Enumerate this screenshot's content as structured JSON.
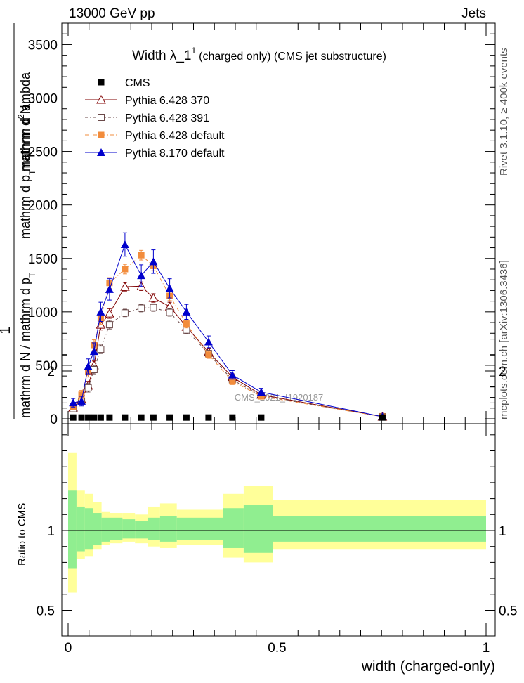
{
  "header": {
    "energy": "13000 GeV pp",
    "process": "Jets",
    "side_version": "Rivet 3.1.10, ≥ 400k events",
    "side_source": "mcplots.cern.ch [arXiv:1306.3436]"
  },
  "chart_data": {
    "type": "line",
    "title_main": "Width λ_1",
    "title_sup": "1",
    "title_tail": "(charged only) (CMS jet substructure)",
    "ylabel": "1 / mathrm d N / mathrm d p_T mathrm d^2N / mathrm d p_T mathrm d lambda",
    "ylabel_parts": {
      "one": "1",
      "denominator": "mathrm d N / mathrm d p",
      "sub": "T",
      "numerator_a": "mathrm d",
      "numerator_sup": "2",
      "numerator_b": "N",
      "numerator_c": "mathrm d p",
      "numerator_sub": "T",
      "numerator_d": "mathrm d lambda"
    },
    "ratio_ylabel": "Ratio to CMS",
    "xlabel": "width (charged-only)",
    "watermark": "CMS_2021_I1920187",
    "xlim": [
      0,
      1
    ],
    "ylim": [
      0,
      3700
    ],
    "ratio_ylim": [
      0.35,
      2.3
    ],
    "yticks": [
      0,
      500,
      1000,
      1500,
      2000,
      2500,
      3000,
      3500
    ],
    "ytick_labels": [
      "0",
      "500",
      "1000",
      "1500",
      "2000",
      "2500",
      "3000",
      "3500"
    ],
    "xticks": [
      0,
      0.5,
      1
    ],
    "xtick_labels": [
      "0",
      "0.5",
      "1"
    ],
    "ratio_yticks": [
      0.5,
      1,
      2
    ],
    "ratio_ytick_labels": [
      "0.5",
      "1",
      "2"
    ],
    "legend_position": "top-left",
    "bin_edges": [
      0,
      0.02,
      0.04,
      0.06,
      0.08,
      0.1,
      0.13,
      0.16,
      0.19,
      0.22,
      0.26,
      0.3,
      0.37,
      0.42,
      0.49,
      1.0
    ],
    "x": [
      0.012,
      0.032,
      0.048,
      0.062,
      0.078,
      0.099,
      0.136,
      0.175,
      0.204,
      0.243,
      0.283,
      0.336,
      0.393,
      0.462,
      0.752
    ],
    "cms_values": [
      12,
      12,
      12,
      12,
      12,
      12,
      12,
      12,
      12,
      12,
      12,
      12,
      12,
      12,
      12
    ],
    "series": [
      {
        "name": "CMS",
        "marker": "filled-square",
        "color": "#000000",
        "dash": "none",
        "values": [
          12,
          12,
          12,
          12,
          12,
          12,
          12,
          12,
          12,
          12,
          12,
          12,
          12,
          12,
          12
        ],
        "err": [
          0,
          0,
          0,
          0,
          0,
          0,
          0,
          0,
          0,
          0,
          0,
          0,
          0,
          0,
          0
        ],
        "line": false
      },
      {
        "name": "Pythia 6.428 370",
        "marker": "open-triangle",
        "color": "#800000",
        "dash": "none",
        "values": [
          105,
          180,
          310,
          500,
          880,
          985,
          1235,
          1240,
          1130,
          1050,
          860,
          625,
          390,
          225,
          20
        ],
        "err": [
          25,
          35,
          40,
          40,
          50,
          45,
          40,
          40,
          40,
          40,
          40,
          35,
          30,
          25,
          10
        ],
        "line": true
      },
      {
        "name": "Pythia 6.428 391",
        "marker": "open-square",
        "color": "#6b4a4a",
        "dash": "4,3,1,3",
        "values": [
          95,
          165,
          290,
          460,
          650,
          880,
          990,
          1035,
          1040,
          995,
          830,
          610,
          365,
          215,
          20
        ],
        "err": [
          25,
          35,
          40,
          40,
          40,
          40,
          35,
          35,
          35,
          35,
          35,
          30,
          25,
          20,
          8
        ],
        "line": true
      },
      {
        "name": "Pythia 6.428 default",
        "marker": "filled-square",
        "color": "#f28c3c",
        "dash": "5,3,1,3",
        "values": [
          115,
          225,
          440,
          690,
          940,
          1270,
          1400,
          1530,
          1430,
          1150,
          890,
          600,
          350,
          210,
          20
        ],
        "err": [
          30,
          40,
          50,
          50,
          55,
          50,
          45,
          45,
          45,
          45,
          40,
          35,
          30,
          25,
          10
        ],
        "line": true
      },
      {
        "name": "Pythia 8.170 default",
        "marker": "filled-triangle",
        "color": "#0000cc",
        "dash": "none",
        "values": [
          150,
          165,
          490,
          630,
          1000,
          1210,
          1630,
          1340,
          1470,
          1220,
          1000,
          720,
          410,
          250,
          20
        ],
        "err": [
          40,
          45,
          70,
          80,
          90,
          100,
          110,
          100,
          110,
          90,
          70,
          55,
          40,
          35,
          10
        ],
        "line": true
      }
    ],
    "ratio_bands": {
      "inner": [
        [
          0.76,
          1.25
        ],
        [
          0.87,
          1.15
        ],
        [
          0.88,
          1.14
        ],
        [
          0.91,
          1.11
        ],
        [
          0.93,
          1.08
        ],
        [
          0.94,
          1.08
        ],
        [
          0.95,
          1.07
        ],
        [
          0.95,
          1.06
        ],
        [
          0.94,
          1.08
        ],
        [
          0.93,
          1.09
        ],
        [
          0.94,
          1.08
        ],
        [
          0.94,
          1.08
        ],
        [
          0.89,
          1.14
        ],
        [
          0.86,
          1.16
        ],
        [
          0.93,
          1.09
        ]
      ],
      "outer": [
        [
          0.61,
          1.49
        ],
        [
          0.82,
          1.25
        ],
        [
          0.84,
          1.23
        ],
        [
          0.88,
          1.18
        ],
        [
          0.91,
          1.12
        ],
        [
          0.92,
          1.11
        ],
        [
          0.93,
          1.11
        ],
        [
          0.92,
          1.1
        ],
        [
          0.9,
          1.15
        ],
        [
          0.89,
          1.17
        ],
        [
          0.91,
          1.13
        ],
        [
          0.91,
          1.13
        ],
        [
          0.83,
          1.23
        ],
        [
          0.8,
          1.28
        ],
        [
          0.88,
          1.19
        ]
      ]
    }
  },
  "colors": {
    "ratio_inner": "#90ee90",
    "ratio_outer": "#ffff99",
    "watermark": "#999999"
  }
}
